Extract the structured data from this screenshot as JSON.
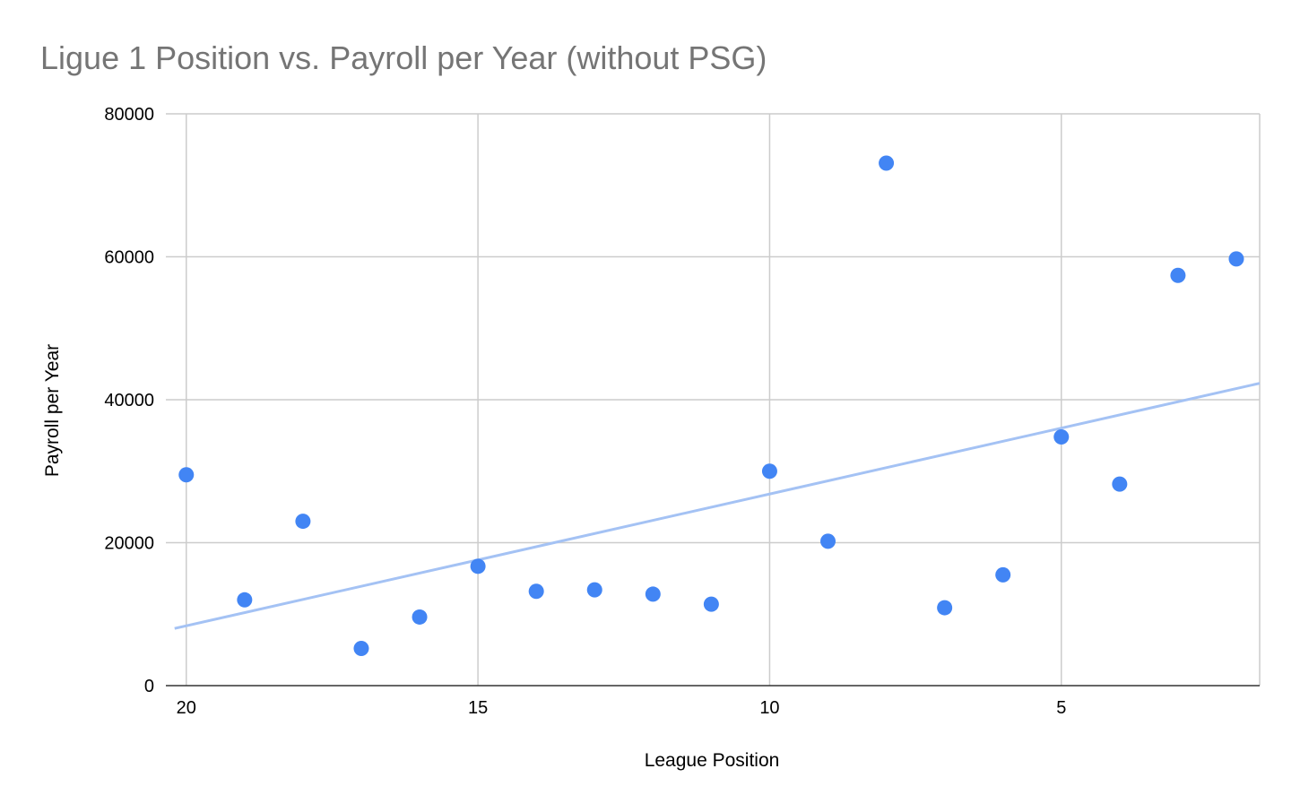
{
  "chart_data": {
    "type": "scatter",
    "title": "Ligue 1 Position vs. Payroll per Year (without PSG)",
    "xlabel": "League Position",
    "ylabel": "Payroll per Year",
    "x_reversed": true,
    "xlim": [
      20,
      1.6
    ],
    "ylim": [
      0,
      80000
    ],
    "x_ticks": [
      "20",
      "15",
      "10",
      "5"
    ],
    "x_tick_values": [
      20,
      15,
      10,
      5
    ],
    "y_ticks": [
      "0",
      "20000",
      "40000",
      "60000",
      "80000"
    ],
    "y_tick_values": [
      0,
      20000,
      40000,
      60000,
      80000
    ],
    "grid": true,
    "point_color": "#4285f4",
    "trendline_color": "#a4c2f4",
    "series": [
      {
        "x": [
          20,
          19,
          18,
          17,
          16,
          15,
          14,
          13,
          12,
          11,
          10,
          9,
          8,
          7,
          6,
          5,
          4,
          3,
          2
        ],
        "y": [
          29500,
          12000,
          23000,
          5200,
          9600,
          16700,
          13200,
          13400,
          12800,
          11400,
          30000,
          20200,
          73100,
          10900,
          15500,
          34800,
          28200,
          57400,
          59700
        ]
      }
    ],
    "trendline": {
      "type": "linear",
      "x": [
        20.2,
        1.6
      ],
      "y": [
        8000,
        42300
      ]
    }
  }
}
